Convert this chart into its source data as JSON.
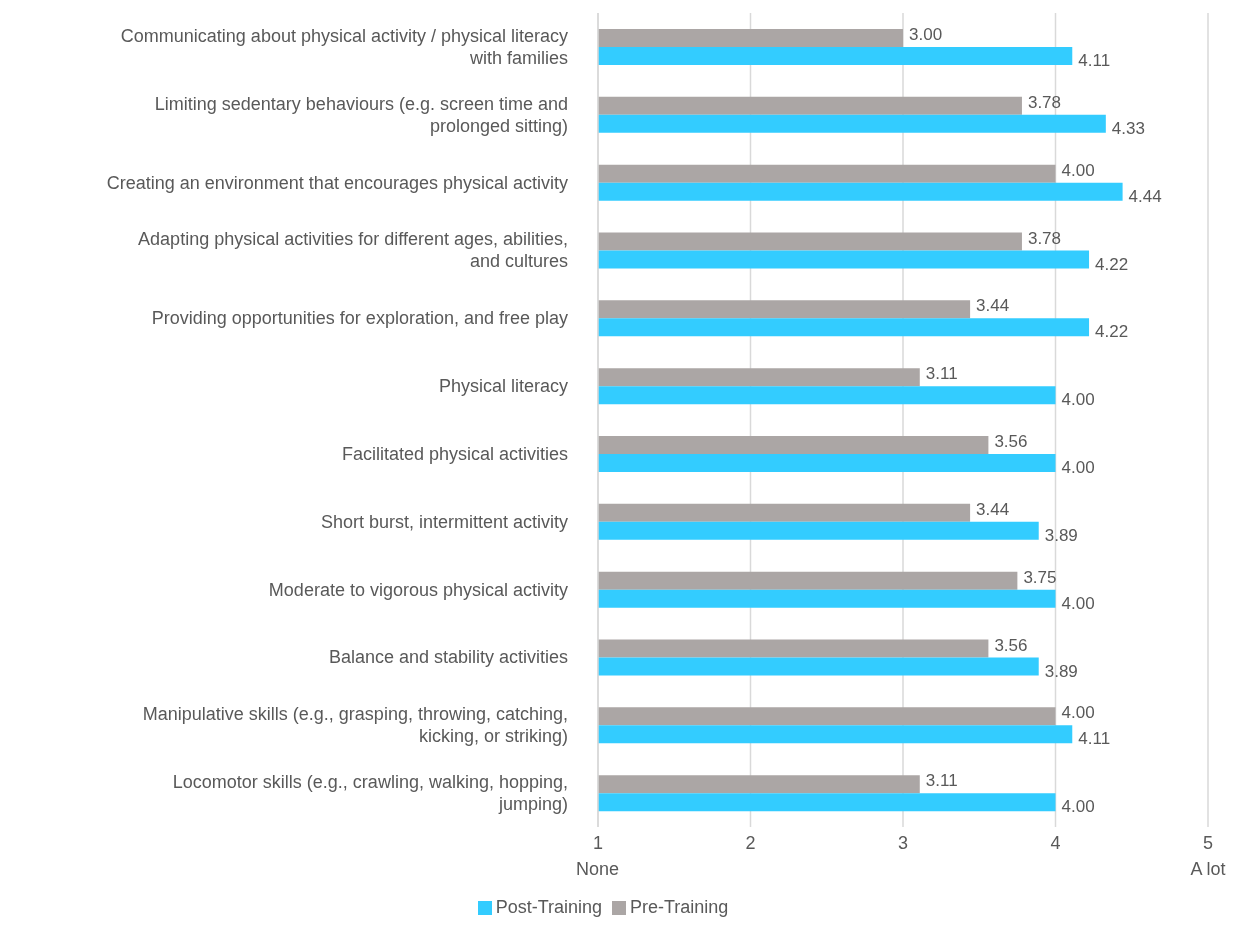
{
  "chart_data": {
    "type": "bar",
    "orientation": "horizontal",
    "categories": [
      "Communicating about physical activity / physical literacy with families",
      "Limiting sedentary behaviours (e.g. screen time and prolonged sitting)",
      "Creating an environment that encourages physical activity",
      "Adapting physical activities for different ages, abilities, and cultures",
      "Providing opportunities for exploration, and free play",
      "Physical literacy",
      "Facilitated physical activities",
      "Short burst, intermittent activity",
      "Moderate to vigorous physical activity",
      "Balance and stability activities",
      "Manipulative skills (e.g., grasping, throwing, catching, kicking, or striking)",
      "Locomotor skills (e.g., crawling, walking, hopping, jumping)"
    ],
    "series": [
      {
        "name": "Pre-Training",
        "color": "#aba6a5",
        "values": [
          3.0,
          3.78,
          4.0,
          3.78,
          3.44,
          3.11,
          3.56,
          3.44,
          3.75,
          3.56,
          4.0,
          3.11
        ],
        "value_labels": [
          "3.00",
          "3.78",
          "4.00",
          "3.78",
          "3.44",
          "3.11",
          "3.56",
          "3.44",
          "3.75",
          "3.56",
          "4.00",
          "3.11"
        ]
      },
      {
        "name": "Post-Training",
        "color": "#33ccff",
        "values": [
          4.11,
          4.33,
          4.44,
          4.22,
          4.22,
          4.0,
          4.0,
          3.89,
          4.0,
          3.89,
          4.11,
          4.0
        ],
        "value_labels": [
          "4.11",
          "4.33",
          "4.44",
          "4.22",
          "4.22",
          "4.00",
          "4.00",
          "3.89",
          "4.00",
          "3.89",
          "4.11",
          "4.00"
        ]
      }
    ],
    "xlim": [
      1,
      5
    ],
    "xticks": [
      {
        "value": 1,
        "label": "1\nNone"
      },
      2,
      3,
      4,
      {
        "value": 5,
        "label": "5\nA lot"
      }
    ],
    "grid": "x",
    "legend": "bottom"
  }
}
